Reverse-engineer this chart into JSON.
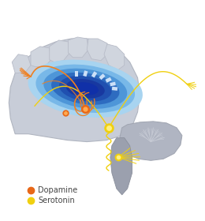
{
  "bg": "#ffffff",
  "cortex_fill": "#c8cdd8",
  "cortex_edge": "#b0b5c0",
  "gyri_fill": "#d0d5de",
  "gyri_edge": "#b8bcc8",
  "cerebellum_fill": "#b0b5c2",
  "cerebellum_edge": "#9fa4b0",
  "brainstem_fill": "#9ba0ae",
  "brainstem_edge": "#8a8f9c",
  "blue1": "#a8d4f0",
  "blue2": "#78b8e8",
  "blue3": "#4e96d8",
  "blue4": "#2e6cc0",
  "blue5": "#2050b0",
  "blue6": "#1838a0",
  "blue_dark": "#1030a8",
  "white_rect": "#cce0f8",
  "dop_col": "#f08020",
  "dop_node": "#e86818",
  "ser_col": "#f0d010",
  "ser_node": "#f0d010",
  "legend_dop": "Dopamine",
  "legend_ser": "Serotonin",
  "lfs": 7
}
